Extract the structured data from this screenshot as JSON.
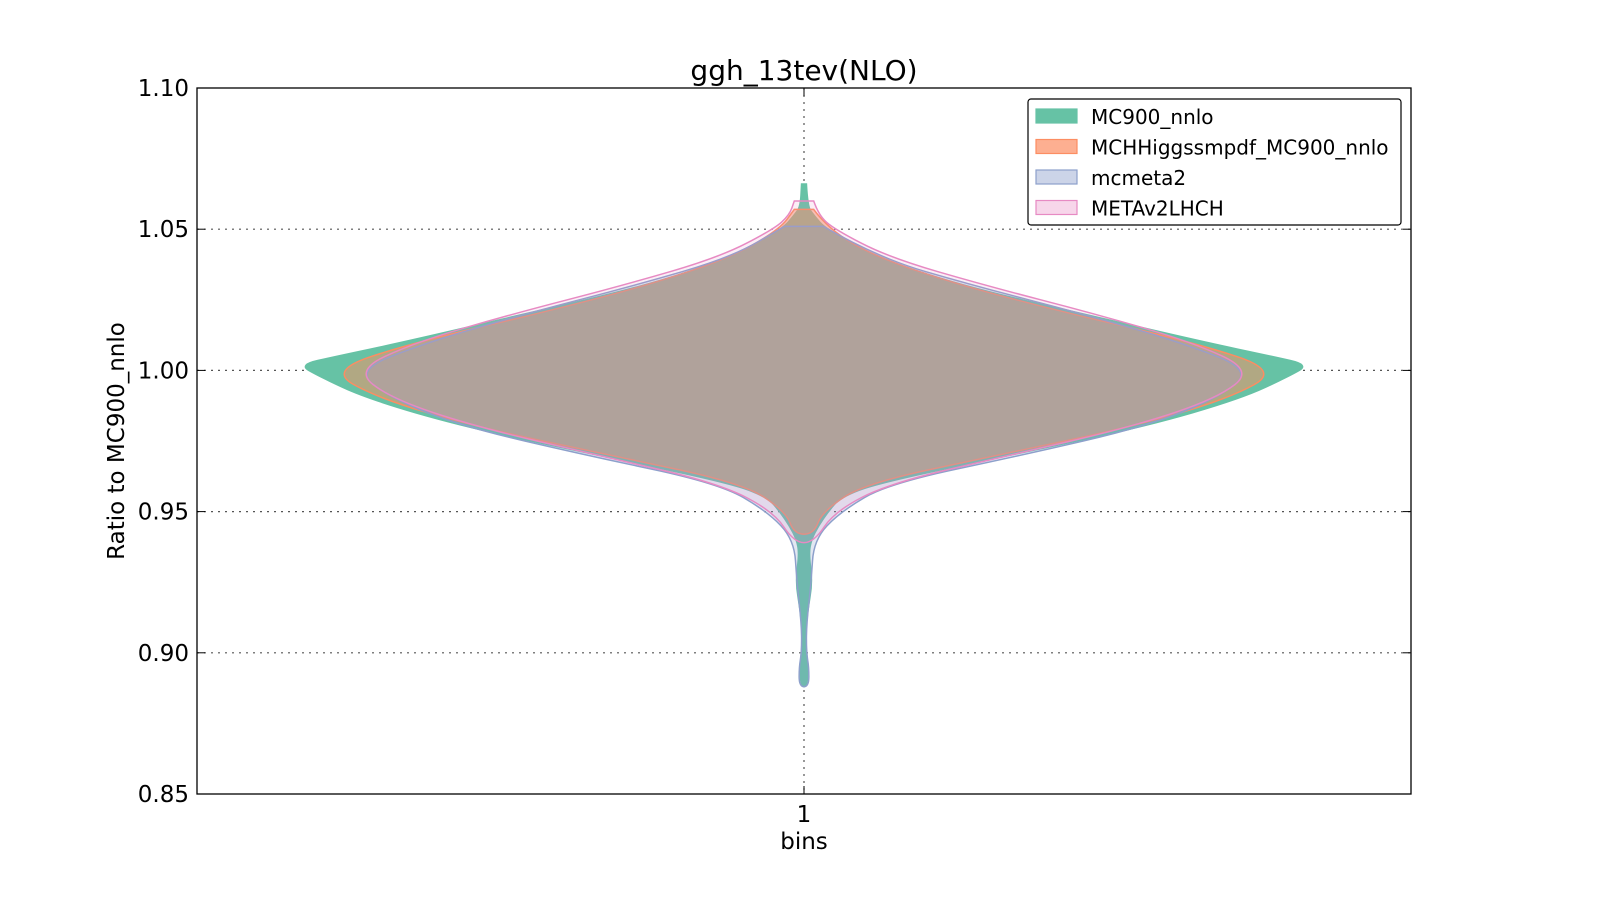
{
  "chart_data": {
    "type": "violin",
    "title": "ggh_13tev(NLO)",
    "xlabel": "bins",
    "ylabel": "Ratio to MC900_nnlo",
    "categories": [
      "1"
    ],
    "xlim": [
      0.5,
      1.5
    ],
    "ylim": [
      0.85,
      1.1
    ],
    "yticks": [
      0.85,
      0.9,
      0.95,
      1.0,
      1.05,
      1.1
    ],
    "ytick_labels": [
      "0.85",
      "0.90",
      "0.95",
      "1.00",
      "1.05",
      "1.10"
    ],
    "grid": true,
    "legend_position": "top-right",
    "series": [
      {
        "name": "MC900_nnlo",
        "fill": "#66c2a5",
        "stroke": "#66c2a5",
        "opacity": 1.0,
        "profile": [
          [
            1.066,
            0.002
          ],
          [
            1.058,
            0.003
          ],
          [
            1.055,
            0.008
          ],
          [
            1.05,
            0.018
          ],
          [
            1.04,
            0.06
          ],
          [
            1.03,
            0.13
          ],
          [
            1.02,
            0.23
          ],
          [
            1.01,
            0.33
          ],
          [
            1.005,
            0.385
          ],
          [
            1.002,
            0.416
          ],
          [
            0.998,
            0.4
          ],
          [
            0.99,
            0.36
          ],
          [
            0.98,
            0.28
          ],
          [
            0.97,
            0.17
          ],
          [
            0.96,
            0.06
          ],
          [
            0.955,
            0.03
          ],
          [
            0.95,
            0.02
          ],
          [
            0.945,
            0.012
          ],
          [
            0.94,
            0.006
          ],
          [
            0.935,
            0.004
          ],
          [
            0.925,
            0.007
          ],
          [
            0.915,
            0.003
          ],
          [
            0.905,
            0.001
          ],
          [
            0.897,
            0.003
          ],
          [
            0.888,
            0.003
          ]
        ]
      },
      {
        "name": "MCHHiggssmpdf_MC900_nnlo",
        "fill": "#fc8d62",
        "stroke": "#fc8d62",
        "opacity": 0.5,
        "profile": [
          [
            1.057,
            0.008
          ],
          [
            1.05,
            0.02
          ],
          [
            1.04,
            0.06
          ],
          [
            1.03,
            0.13
          ],
          [
            1.02,
            0.22
          ],
          [
            1.01,
            0.32
          ],
          [
            1.0,
            0.392
          ],
          [
            0.99,
            0.35
          ],
          [
            0.98,
            0.27
          ],
          [
            0.97,
            0.16
          ],
          [
            0.96,
            0.05
          ],
          [
            0.95,
            0.015
          ],
          [
            0.942,
            0.008
          ]
        ]
      },
      {
        "name": "mcmeta2",
        "fill": "#8da0cb",
        "stroke": "#8da0cb",
        "opacity": 0.25,
        "profile": [
          [
            1.051,
            0.016
          ],
          [
            1.04,
            0.06
          ],
          [
            1.03,
            0.14
          ],
          [
            1.02,
            0.23
          ],
          [
            1.01,
            0.31
          ],
          [
            1.0,
            0.37
          ],
          [
            0.99,
            0.34
          ],
          [
            0.98,
            0.28
          ],
          [
            0.97,
            0.18
          ],
          [
            0.96,
            0.07
          ],
          [
            0.95,
            0.03
          ],
          [
            0.94,
            0.008
          ],
          [
            0.925,
            0.006
          ],
          [
            0.91,
            0.002
          ],
          [
            0.9,
            0.002
          ],
          [
            0.895,
            0.004
          ],
          [
            0.888,
            0.004
          ]
        ]
      },
      {
        "name": "METAv2LHCH",
        "fill": "#e78ac3",
        "stroke": "#e78ac3",
        "opacity": 0.15,
        "profile": [
          [
            1.06,
            0.008
          ],
          [
            1.055,
            0.012
          ],
          [
            1.05,
            0.025
          ],
          [
            1.04,
            0.07
          ],
          [
            1.03,
            0.15
          ],
          [
            1.02,
            0.24
          ],
          [
            1.01,
            0.32
          ],
          [
            1.0,
            0.37
          ],
          [
            0.99,
            0.34
          ],
          [
            0.98,
            0.27
          ],
          [
            0.97,
            0.17
          ],
          [
            0.96,
            0.07
          ],
          [
            0.95,
            0.025
          ],
          [
            0.939,
            0.008
          ]
        ]
      }
    ]
  }
}
